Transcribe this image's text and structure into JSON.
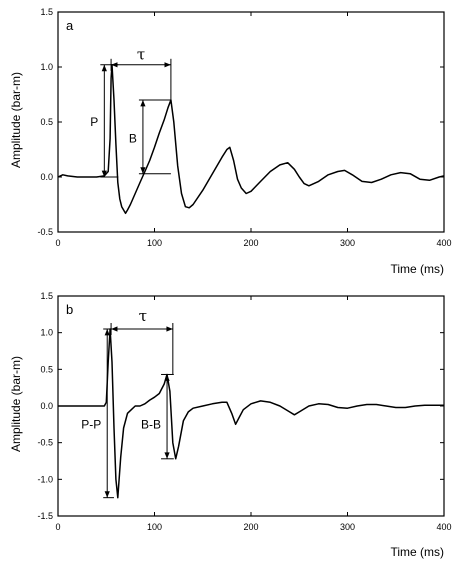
{
  "chart_data": [
    {
      "panel": "a",
      "type": "line",
      "xlabel": "Time (ms)",
      "ylabel": "Amplitude (bar-m)",
      "xlim": [
        0,
        400
      ],
      "ylim": [
        -0.5,
        1.5
      ],
      "xticks": [
        0,
        100,
        200,
        300,
        400
      ],
      "yticks": [
        -0.5,
        0.0,
        0.5,
        1.0,
        1.5
      ],
      "ytick_labels": [
        "-0.5",
        "0.0",
        "0.5",
        "1.0",
        "1.5"
      ],
      "grid": false,
      "series": [
        {
          "x": [
            0,
            5,
            10,
            20,
            30,
            40,
            48,
            52,
            54,
            55,
            56,
            58,
            60,
            62,
            64,
            66,
            68,
            70,
            72,
            75,
            80,
            85,
            90,
            95,
            100,
            105,
            110,
            114,
            117,
            120,
            124,
            128,
            132,
            136,
            140,
            150,
            160,
            170,
            175,
            178,
            182,
            186,
            190,
            195,
            200,
            210,
            220,
            230,
            238,
            245,
            250,
            255,
            260,
            270,
            280,
            290,
            297,
            305,
            315,
            325,
            335,
            345,
            355,
            365,
            375,
            385,
            395,
            400
          ],
          "y": [
            0.0,
            0.02,
            0.01,
            0.0,
            0.0,
            0.0,
            0.01,
            0.05,
            0.35,
            0.9,
            1.02,
            0.7,
            0.3,
            -0.05,
            -0.2,
            -0.27,
            -0.3,
            -0.33,
            -0.3,
            -0.25,
            -0.15,
            -0.05,
            0.05,
            0.15,
            0.27,
            0.4,
            0.52,
            0.63,
            0.7,
            0.5,
            0.1,
            -0.15,
            -0.27,
            -0.28,
            -0.25,
            -0.12,
            0.03,
            0.18,
            0.25,
            0.27,
            0.15,
            -0.02,
            -0.1,
            -0.15,
            -0.13,
            -0.04,
            0.05,
            0.11,
            0.13,
            0.07,
            0.0,
            -0.06,
            -0.08,
            -0.04,
            0.02,
            0.05,
            0.06,
            0.02,
            -0.04,
            -0.05,
            -0.02,
            0.02,
            0.04,
            0.03,
            -0.02,
            -0.03,
            0.0,
            0.01
          ]
        }
      ],
      "annotations": {
        "P": {
          "label": "P",
          "x": 48,
          "y_from": 0.0,
          "y_to": 1.02,
          "y_label": 0.5
        },
        "B": {
          "label": "B",
          "x": 88,
          "y_from": 0.03,
          "y_to": 0.7,
          "y_label": 0.35
        },
        "tau": {
          "label": "τ",
          "x_from": 55,
          "x_to": 117,
          "y": 1.02,
          "label_x": 86,
          "label_y": 1.07
        }
      }
    },
    {
      "panel": "b",
      "type": "line",
      "xlabel": "Time (ms)",
      "ylabel": "Amplitude (bar-m)",
      "xlim": [
        0,
        400
      ],
      "ylim": [
        -1.5,
        1.5
      ],
      "xticks": [
        0,
        100,
        200,
        300,
        400
      ],
      "yticks": [
        -1.5,
        -1.0,
        -0.5,
        0.0,
        0.5,
        1.0,
        1.5
      ],
      "ytick_labels": [
        "-1.5",
        "-1.0",
        "-0.5",
        "0.0",
        "0.5",
        "1.0",
        "1.5"
      ],
      "grid": false,
      "series": [
        {
          "x": [
            0,
            10,
            20,
            30,
            40,
            48,
            50,
            52,
            54,
            56,
            58,
            60,
            62,
            65,
            68,
            72,
            76,
            80,
            85,
            90,
            95,
            100,
            105,
            110,
            113,
            116,
            119,
            122,
            125,
            130,
            135,
            140,
            150,
            160,
            170,
            175,
            180,
            184,
            188,
            192,
            200,
            210,
            220,
            230,
            240,
            245,
            250,
            260,
            270,
            280,
            290,
            300,
            310,
            320,
            330,
            340,
            350,
            360,
            370,
            380,
            390,
            400
          ],
          "y": [
            0.0,
            0.0,
            0.0,
            0.0,
            0.0,
            0.0,
            0.05,
            0.6,
            1.05,
            0.6,
            -0.3,
            -1.0,
            -1.25,
            -0.7,
            -0.3,
            -0.1,
            -0.05,
            0.0,
            0.0,
            0.03,
            0.08,
            0.12,
            0.17,
            0.3,
            0.43,
            0.2,
            -0.5,
            -0.72,
            -0.55,
            -0.2,
            -0.08,
            -0.03,
            0.0,
            0.03,
            0.05,
            0.05,
            -0.1,
            -0.25,
            -0.15,
            -0.05,
            0.03,
            0.07,
            0.05,
            0.0,
            -0.08,
            -0.12,
            -0.08,
            0.0,
            0.03,
            0.02,
            -0.02,
            -0.03,
            0.0,
            0.02,
            0.02,
            0.0,
            -0.02,
            -0.02,
            0.0,
            0.01,
            0.01,
            0.01
          ]
        }
      ],
      "annotations": {
        "PP": {
          "label": "P-P",
          "x": 51,
          "y_from": -1.25,
          "y_to": 1.05,
          "y_label": -0.25
        },
        "BB": {
          "label": "B-B",
          "x": 113,
          "y_from": -0.72,
          "y_to": 0.43,
          "y_label": -0.25
        },
        "tau": {
          "label": "τ",
          "x_from": 55,
          "x_to": 119,
          "y": 1.05,
          "label_x": 88,
          "label_y": 1.16
        }
      }
    }
  ]
}
